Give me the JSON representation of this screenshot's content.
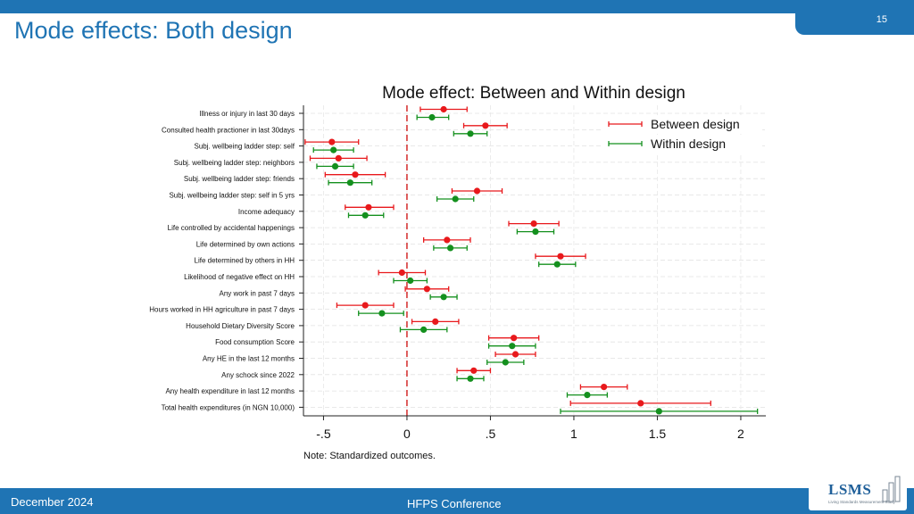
{
  "slide": {
    "title": "Mode effects: Both design",
    "page_number": "15"
  },
  "footer": {
    "date": "December 2024",
    "event": "HFPS Conference"
  },
  "logo": {
    "text": "LSMS",
    "subtitle": "Living Standards Measurement Study"
  },
  "colors": {
    "brand": "#1f74b4",
    "between": "#e8191c",
    "within": "#14901e",
    "zero_line": "#d42a2a"
  },
  "chart_data": {
    "type": "scatter",
    "title": "Mode effect: Between and Within design",
    "note": "Note: Standardized outcomes.",
    "xlim": [
      -0.62,
      2.15
    ],
    "xticks": [
      -0.5,
      0,
      0.5,
      1,
      1.5,
      2
    ],
    "xtick_labels": [
      "-.5",
      "0",
      ".5",
      "1",
      "1.5",
      "2"
    ],
    "reference_line_x": 0,
    "grid": true,
    "legend_position": "top-right",
    "categories": [
      "Illness or injury in last 30 days",
      "Consulted health practioner in last 30days",
      "Subj. wellbeing ladder step: self",
      "Subj. wellbeing ladder step: neighbors",
      "Subj. wellbeing ladder step: friends",
      "Subj. wellbeing ladder step: self in 5 yrs",
      "Income adequacy",
      "Life controlled by accidental happenings",
      "Life determined by own actions",
      "Life determined by others in HH",
      "Likelihood of negative effect on HH",
      "Any work in past 7 days",
      "Hours worked in HH agriculture in past 7 days",
      "Household Dietary Diversity Score",
      "Food consumption Score",
      "Any HE in the last 12 months",
      "Any schock since 2022",
      "Any health expenditure in last 12 months",
      "Total health expenditures (in NGN 10,000)"
    ],
    "series": [
      {
        "name": "Between design",
        "estimate": [
          0.22,
          0.47,
          -0.45,
          -0.41,
          -0.31,
          0.42,
          -0.23,
          0.76,
          0.24,
          0.92,
          -0.03,
          0.12,
          -0.25,
          0.17,
          0.64,
          0.65,
          0.4,
          1.18,
          1.4
        ],
        "ci_low": [
          0.08,
          0.34,
          -0.61,
          -0.58,
          -0.49,
          0.27,
          -0.37,
          0.61,
          0.1,
          0.77,
          -0.17,
          -0.01,
          -0.42,
          0.03,
          0.49,
          0.53,
          0.3,
          1.04,
          0.98
        ],
        "ci_high": [
          0.36,
          0.6,
          -0.29,
          -0.24,
          -0.13,
          0.57,
          -0.08,
          0.91,
          0.38,
          1.07,
          0.11,
          0.25,
          -0.08,
          0.31,
          0.79,
          0.77,
          0.5,
          1.32,
          1.82
        ]
      },
      {
        "name": "Within design",
        "estimate": [
          0.15,
          0.38,
          -0.44,
          -0.43,
          -0.34,
          0.29,
          -0.25,
          0.77,
          0.26,
          0.9,
          0.02,
          0.22,
          -0.15,
          0.1,
          0.63,
          0.59,
          0.38,
          1.08,
          1.51
        ],
        "ci_low": [
          0.06,
          0.28,
          -0.56,
          -0.54,
          -0.47,
          0.18,
          -0.35,
          0.66,
          0.16,
          0.79,
          -0.08,
          0.14,
          -0.29,
          -0.04,
          0.49,
          0.48,
          0.3,
          0.96,
          0.92
        ],
        "ci_high": [
          0.25,
          0.48,
          -0.32,
          -0.32,
          -0.21,
          0.4,
          -0.14,
          0.88,
          0.36,
          1.01,
          0.12,
          0.3,
          -0.02,
          0.24,
          0.77,
          0.7,
          0.46,
          1.2,
          2.1
        ]
      }
    ]
  }
}
